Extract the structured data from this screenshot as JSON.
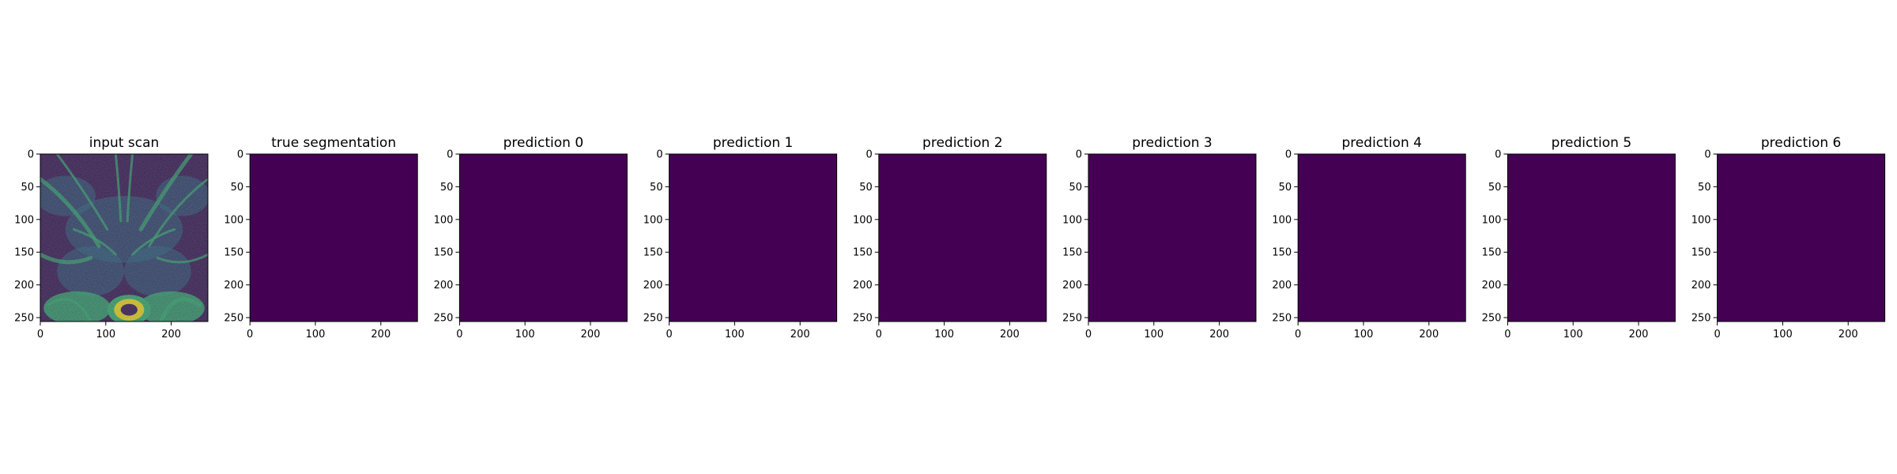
{
  "figure": {
    "panels": [
      {
        "title": "input scan",
        "kind": "scan"
      },
      {
        "title": "true segmentation",
        "kind": "mask"
      },
      {
        "title": "prediction 0",
        "kind": "mask"
      },
      {
        "title": "prediction 1",
        "kind": "mask"
      },
      {
        "title": "prediction 2",
        "kind": "mask"
      },
      {
        "title": "prediction 3",
        "kind": "mask"
      },
      {
        "title": "prediction 4",
        "kind": "mask"
      },
      {
        "title": "prediction 5",
        "kind": "mask"
      },
      {
        "title": "prediction 6",
        "kind": "mask"
      }
    ],
    "axes": {
      "x_ticks": [
        "0",
        "100",
        "200"
      ],
      "y_ticks": [
        "0",
        "50",
        "100",
        "150",
        "200",
        "250"
      ],
      "x_tick_values": [
        0,
        100,
        200
      ],
      "y_tick_values": [
        0,
        50,
        100,
        150,
        200,
        250
      ],
      "image_extent": [
        0,
        256
      ]
    },
    "colors": {
      "mask_fill": "#440154",
      "scan_dark": "#3b1a5e",
      "scan_mid": "#2d6f8e",
      "scan_bright": "#35b779",
      "scan_highlight": "#fde725"
    }
  }
}
